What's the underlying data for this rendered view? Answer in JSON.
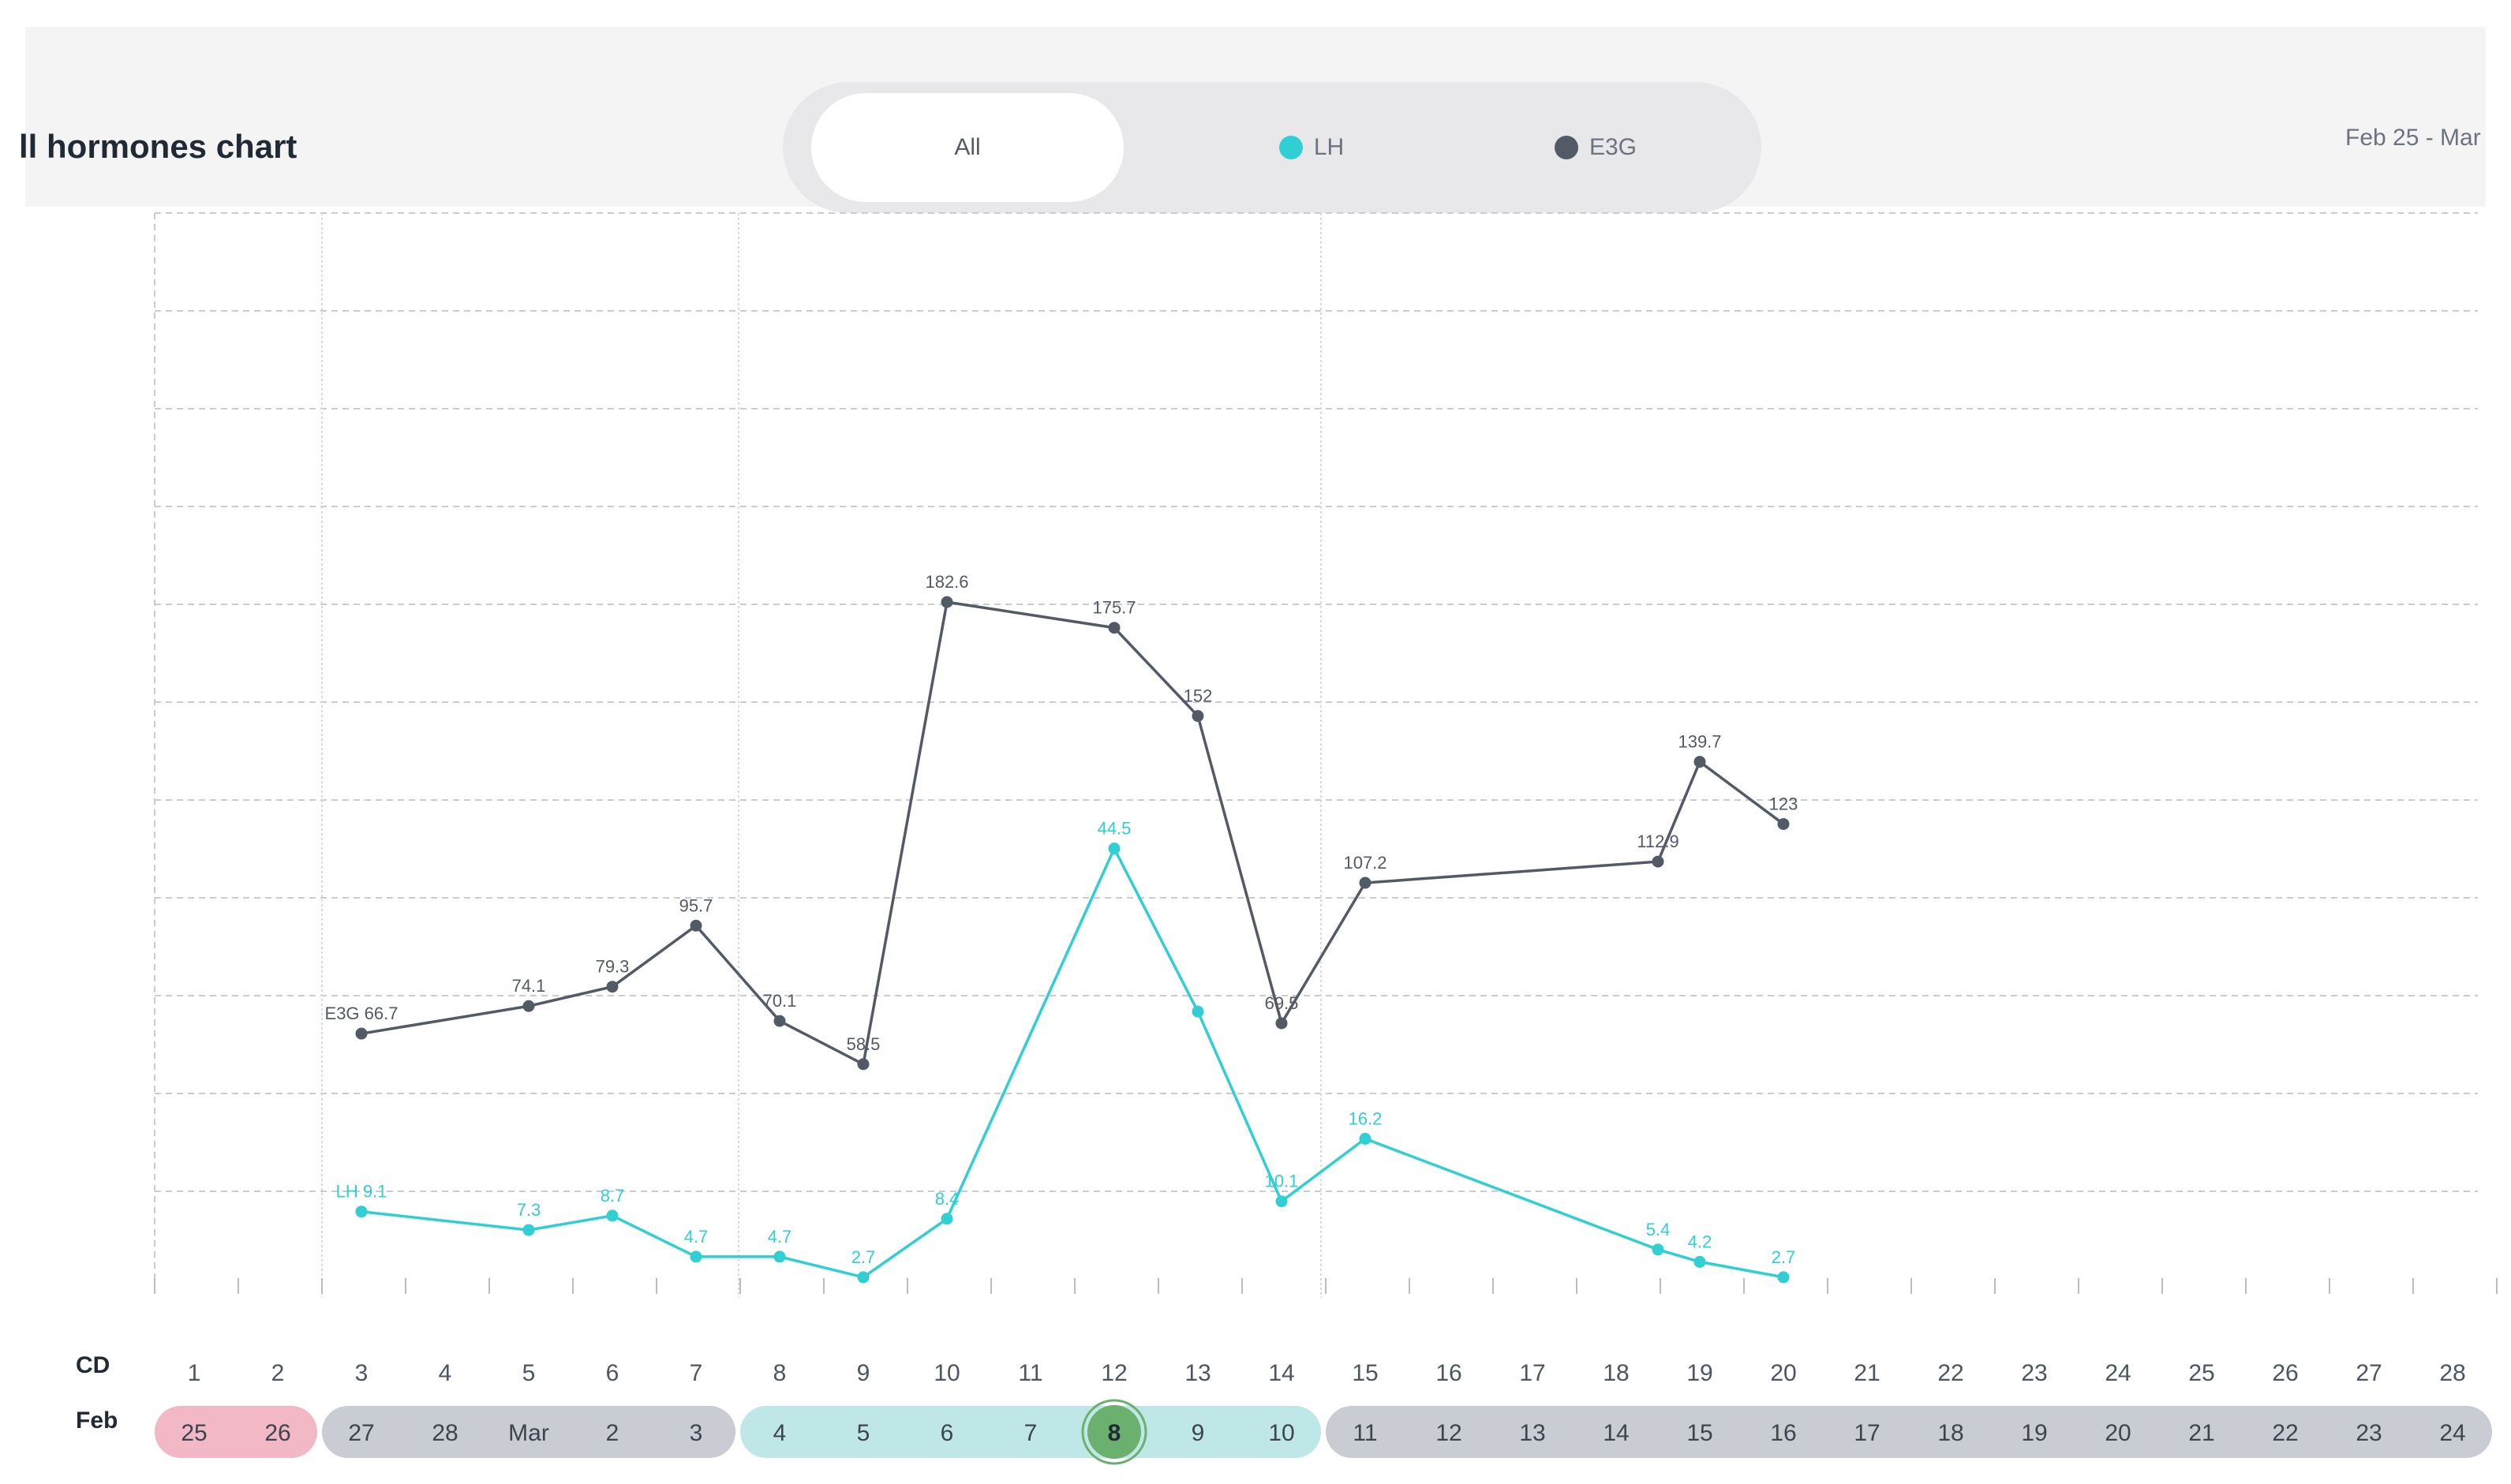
{
  "header": {
    "title": "ll hormones chart",
    "toggle": {
      "all": "All",
      "lh": "LH",
      "e3g": "E3G"
    },
    "date_range": "Feb 25 - Mar"
  },
  "colors": {
    "lh": "#2fcfd3",
    "e3g": "#525a66",
    "period": "#f2b8c6",
    "grey_phase": "#c9ccd2",
    "fertile": "#bfe7e7",
    "peak": "#6bb06f"
  },
  "rows": {
    "cd_label": "CD",
    "month_label": "Feb"
  },
  "chart_data": {
    "type": "line",
    "x_label": "CD",
    "cycle_days": [
      1,
      2,
      3,
      4,
      5,
      6,
      7,
      8,
      9,
      10,
      11,
      12,
      13,
      14,
      15,
      16,
      17,
      18,
      19,
      20,
      21,
      22,
      23,
      24,
      25,
      26,
      27,
      28
    ],
    "dates": [
      "25",
      "26",
      "27",
      "28",
      "Mar",
      "2",
      "3",
      "4",
      "5",
      "6",
      "7",
      "8",
      "9",
      "10",
      "11",
      "12",
      "13",
      "14",
      "15",
      "16",
      "17",
      "18",
      "19",
      "20",
      "21",
      "22",
      "23",
      "24"
    ],
    "phases": [
      "period",
      "period",
      "grey",
      "grey",
      "grey",
      "grey",
      "grey",
      "fertile",
      "fertile",
      "fertile",
      "fertile",
      "peak",
      "fertile",
      "fertile",
      "grey",
      "grey",
      "grey",
      "grey",
      "grey",
      "grey",
      "grey",
      "grey",
      "grey",
      "grey",
      "grey",
      "grey",
      "grey",
      "grey"
    ],
    "series": [
      {
        "name": "E3G",
        "color": "#525a66",
        "points": [
          {
            "cd": 3,
            "value": 66.7,
            "label": "E3G 66.7"
          },
          {
            "cd": 5,
            "value": 74.1,
            "label": "74.1"
          },
          {
            "cd": 6,
            "value": 79.3,
            "label": "79.3"
          },
          {
            "cd": 7,
            "value": 95.7,
            "label": "95.7"
          },
          {
            "cd": 8,
            "value": 70.1,
            "label": "70.1"
          },
          {
            "cd": 9,
            "value": 58.5,
            "label": "58.5"
          },
          {
            "cd": 10,
            "value": 182.6,
            "label": "182.6"
          },
          {
            "cd": 12,
            "value": 175.7,
            "label": "175.7"
          },
          {
            "cd": 13,
            "value": 152,
            "label": "152"
          },
          {
            "cd": 14,
            "value": 69.5,
            "label": "69.5"
          },
          {
            "cd": 15,
            "value": 107.2,
            "label": "107.2"
          },
          {
            "cd": 18.5,
            "value": 112.9,
            "label": "112.9"
          },
          {
            "cd": 19,
            "value": 139.7,
            "label": "139.7"
          },
          {
            "cd": 20,
            "value": 123,
            "label": "123"
          }
        ]
      },
      {
        "name": "LH",
        "color": "#2fcfd3",
        "points": [
          {
            "cd": 3,
            "value": 9.1,
            "label": "LH 9.1"
          },
          {
            "cd": 5,
            "value": 7.3,
            "label": "7.3"
          },
          {
            "cd": 6,
            "value": 8.7,
            "label": "8.7"
          },
          {
            "cd": 7,
            "value": 4.7,
            "label": "4.7"
          },
          {
            "cd": 8,
            "value": 4.7,
            "label": "4.7"
          },
          {
            "cd": 9,
            "value": 2.7,
            "label": "2.7"
          },
          {
            "cd": 10,
            "value": 8.4,
            "label": "8.4"
          },
          {
            "cd": 12,
            "value": 44.5,
            "label": "44.5"
          },
          {
            "cd": 13,
            "value": 28.6,
            "label": ""
          },
          {
            "cd": 14,
            "value": 10.1,
            "label": "10.1"
          },
          {
            "cd": 15,
            "value": 16.2,
            "label": "16.2"
          },
          {
            "cd": 18.5,
            "value": 5.4,
            "label": "5.4"
          },
          {
            "cd": 19,
            "value": 4.2,
            "label": "4.2"
          },
          {
            "cd": 20,
            "value": 2.7,
            "label": "2.7"
          }
        ]
      }
    ],
    "grid": true
  }
}
